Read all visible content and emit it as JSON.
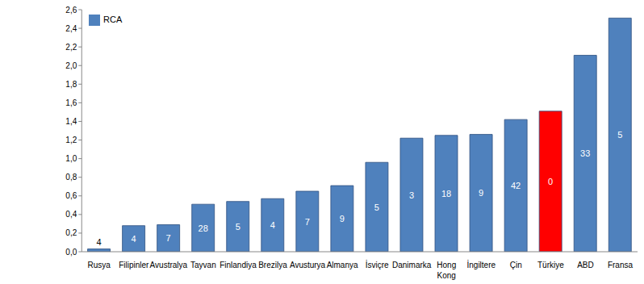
{
  "chart_data": {
    "type": "bar",
    "categories": [
      "Rusya",
      "Filipinler",
      "Avustralya",
      "Tayvan",
      "Finlandiya",
      "Brezilya",
      "Avusturya",
      "Almanya",
      "İsviçre",
      "Danimarka",
      "Hong Kong",
      "İngiltere",
      "Çin",
      "Türkiye",
      "ABD",
      "Fransa"
    ],
    "series": [
      {
        "name": "RCA",
        "color": "#4F81BD",
        "values": [
          0.03,
          0.28,
          0.29,
          0.51,
          0.54,
          0.57,
          0.65,
          0.71,
          0.96,
          1.22,
          1.25,
          1.26,
          1.42,
          1.51,
          2.11,
          2.51
        ],
        "colors": [
          "#4F81BD",
          "#4F81BD",
          "#4F81BD",
          "#4F81BD",
          "#4F81BD",
          "#4F81BD",
          "#4F81BD",
          "#4F81BD",
          "#4F81BD",
          "#4F81BD",
          "#4F81BD",
          "#4F81BD",
          "#4F81BD",
          "#FF0000",
          "#4F81BD",
          "#4F81BD"
        ],
        "counts": [
          4,
          4,
          7,
          28,
          5,
          4,
          7,
          9,
          5,
          3,
          18,
          9,
          42,
          0,
          33,
          5
        ]
      }
    ],
    "ylim": [
      0,
      2.6
    ],
    "yticks": [
      {
        "value": 0,
        "label": "0,0"
      },
      {
        "value": 0.2,
        "label": "0,2"
      },
      {
        "value": 0.4,
        "label": "0,4"
      },
      {
        "value": 0.6,
        "label": "0,6"
      },
      {
        "value": 0.8,
        "label": "0,8"
      },
      {
        "value": 1.0,
        "label": "1,0"
      },
      {
        "value": 1.2,
        "label": "1,2"
      },
      {
        "value": 1.4,
        "label": "1,4"
      },
      {
        "value": 1.6,
        "label": "1,6"
      },
      {
        "value": 1.8,
        "label": "1,8"
      },
      {
        "value": 2.0,
        "label": "2,0"
      },
      {
        "value": 2.2,
        "label": "2,2"
      },
      {
        "value": 2.4,
        "label": "2,4"
      },
      {
        "value": 2.6,
        "label": "2,6"
      }
    ],
    "grid": false,
    "legend": "upper left"
  }
}
